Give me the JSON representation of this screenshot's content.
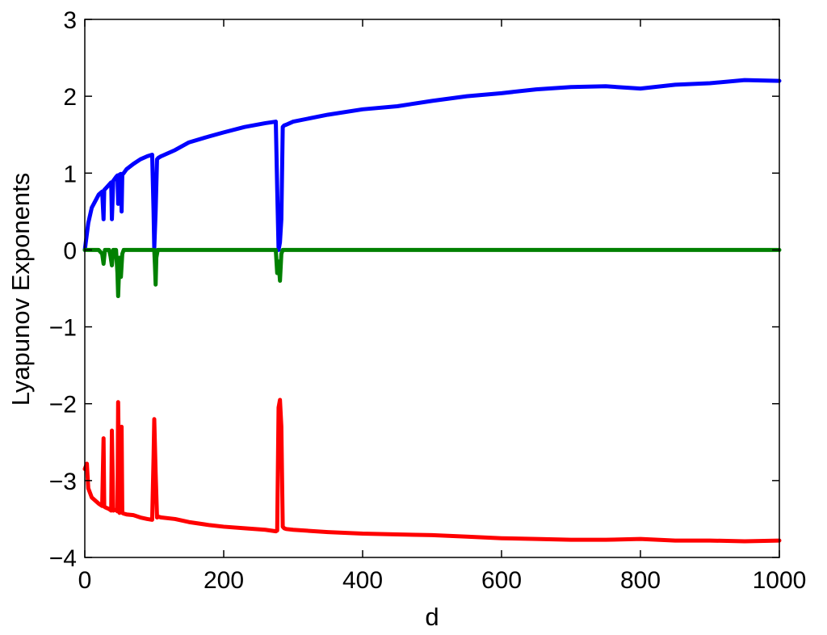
{
  "chart_data": {
    "type": "line",
    "title": "",
    "xlabel": "d",
    "ylabel": "Lyapunov Exponents",
    "xlim": [
      0,
      1000
    ],
    "ylim": [
      -4,
      3
    ],
    "xticks": [
      0,
      200,
      400,
      600,
      800,
      1000
    ],
    "yticks": [
      -4,
      -3,
      -2,
      -1,
      0,
      1,
      2,
      3
    ],
    "xtick_labels": [
      "0",
      "200",
      "400",
      "600",
      "800",
      "1000"
    ],
    "ytick_labels": [
      "−4",
      "−3",
      "−2",
      "−1",
      "0",
      "1",
      "2",
      "3"
    ],
    "grid": false,
    "legend": "none",
    "series": [
      {
        "color": "#0000ff",
        "x": [
          0,
          5,
          10,
          20,
          25,
          27,
          28,
          30,
          35,
          38,
          39,
          41,
          45,
          47,
          48,
          50,
          52,
          53,
          54,
          56,
          60,
          70,
          80,
          90,
          97,
          99,
          100,
          102,
          104,
          106,
          110,
          130,
          150,
          180,
          200,
          230,
          260,
          275,
          277,
          279,
          281,
          283,
          285,
          287,
          290,
          300,
          350,
          400,
          450,
          500,
          550,
          600,
          650,
          700,
          750,
          800,
          850,
          900,
          950,
          1000
        ],
        "y": [
          0.0,
          0.35,
          0.55,
          0.72,
          0.76,
          0.4,
          0.78,
          0.8,
          0.85,
          0.88,
          0.4,
          0.9,
          0.95,
          0.97,
          0.6,
          0.98,
          0.99,
          0.5,
          0.98,
          1.0,
          1.05,
          1.12,
          1.18,
          1.22,
          1.24,
          0.5,
          0.02,
          0.5,
          1.18,
          1.2,
          1.22,
          1.3,
          1.4,
          1.48,
          1.53,
          1.6,
          1.65,
          1.67,
          0.8,
          0.0,
          0.1,
          0.4,
          1.6,
          1.62,
          1.63,
          1.67,
          1.76,
          1.83,
          1.87,
          1.94,
          2.0,
          2.04,
          2.09,
          2.12,
          2.13,
          2.1,
          2.15,
          2.17,
          2.21,
          2.2
        ]
      },
      {
        "color": "#008000",
        "x": [
          0,
          20,
          25,
          27,
          29,
          35,
          37,
          39,
          41,
          45,
          47,
          48,
          50,
          52,
          54,
          56,
          100,
          101,
          102,
          103,
          105,
          275,
          277,
          279,
          281,
          283,
          285,
          1000
        ],
        "y": [
          0.0,
          0.0,
          -0.05,
          -0.18,
          0.0,
          0.0,
          -0.08,
          -0.2,
          0.0,
          0.0,
          -0.3,
          -0.6,
          -0.1,
          -0.35,
          -0.05,
          0.0,
          0.0,
          -0.2,
          -0.45,
          -0.1,
          0.0,
          0.0,
          -0.3,
          -0.15,
          -0.4,
          -0.05,
          0.0,
          0.0
        ]
      },
      {
        "color": "#ff0000",
        "x": [
          0,
          3,
          5,
          10,
          20,
          25,
          27,
          28,
          30,
          35,
          38,
          39,
          41,
          45,
          47,
          48,
          50,
          52,
          53,
          54,
          56,
          60,
          70,
          80,
          90,
          97,
          99,
          100,
          102,
          104,
          106,
          110,
          130,
          150,
          180,
          200,
          230,
          260,
          275,
          277,
          279,
          281,
          283,
          285,
          287,
          290,
          300,
          350,
          400,
          450,
          500,
          550,
          600,
          650,
          700,
          750,
          800,
          850,
          900,
          950,
          1000
        ],
        "y": [
          -2.85,
          -2.78,
          -3.1,
          -3.22,
          -3.3,
          -3.33,
          -2.45,
          -3.34,
          -3.35,
          -3.37,
          -3.39,
          -2.35,
          -3.39,
          -3.38,
          -3.4,
          -1.98,
          -3.42,
          -3.4,
          -2.3,
          -3.42,
          -3.43,
          -3.44,
          -3.45,
          -3.48,
          -3.5,
          -3.51,
          -2.7,
          -2.2,
          -2.9,
          -3.48,
          -3.47,
          -3.48,
          -3.5,
          -3.54,
          -3.58,
          -3.6,
          -3.62,
          -3.64,
          -3.66,
          -3.65,
          -2.05,
          -1.95,
          -2.3,
          -3.6,
          -3.62,
          -3.63,
          -3.64,
          -3.67,
          -3.69,
          -3.7,
          -3.71,
          -3.73,
          -3.75,
          -3.76,
          -3.77,
          -3.77,
          -3.76,
          -3.78,
          -3.78,
          -3.79,
          -3.78
        ]
      }
    ]
  }
}
